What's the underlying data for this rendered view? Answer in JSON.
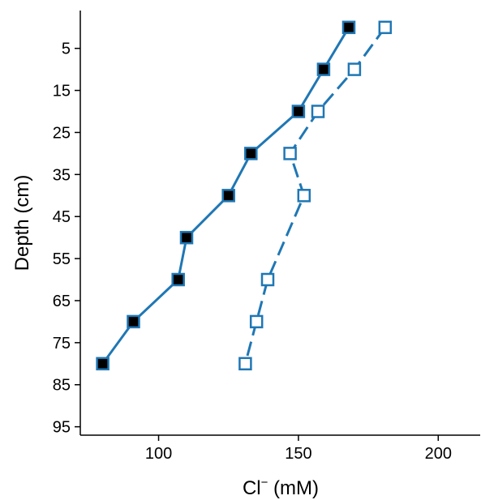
{
  "chart_data": {
    "type": "line",
    "title": "",
    "xlabel": "Cl",
    "xlabel_superscript": "−",
    "xlabel_unit": " (mM)",
    "ylabel": "Depth (cm)",
    "xlim": [
      72,
      215
    ],
    "ylim": [
      97,
      -4
    ],
    "y_inverted": true,
    "xticks": [
      100,
      150,
      200
    ],
    "yticks": [
      5,
      15,
      25,
      35,
      45,
      55,
      65,
      75,
      85,
      95
    ],
    "grid": false,
    "legend": "none",
    "series": [
      {
        "style": "solid",
        "marker": "filled-square",
        "color": "#1f77b4",
        "marker_fill": "#000000",
        "points": [
          {
            "x": 168,
            "y": 0
          },
          {
            "x": 159,
            "y": 10
          },
          {
            "x": 150,
            "y": 20
          },
          {
            "x": 133,
            "y": 30
          },
          {
            "x": 125,
            "y": 40
          },
          {
            "x": 110,
            "y": 50
          },
          {
            "x": 107,
            "y": 60
          },
          {
            "x": 91,
            "y": 70
          },
          {
            "x": 80,
            "y": 80
          }
        ]
      },
      {
        "style": "dashed",
        "marker": "open-square",
        "color": "#1f77b4",
        "marker_fill": "#ffffff",
        "points": [
          {
            "x": 181,
            "y": 0
          },
          {
            "x": 170,
            "y": 10
          },
          {
            "x": 157,
            "y": 20
          },
          {
            "x": 147,
            "y": 30
          },
          {
            "x": 152,
            "y": 40
          },
          {
            "x": 139,
            "y": 60
          },
          {
            "x": 135,
            "y": 70
          },
          {
            "x": 131,
            "y": 80
          }
        ]
      }
    ]
  }
}
